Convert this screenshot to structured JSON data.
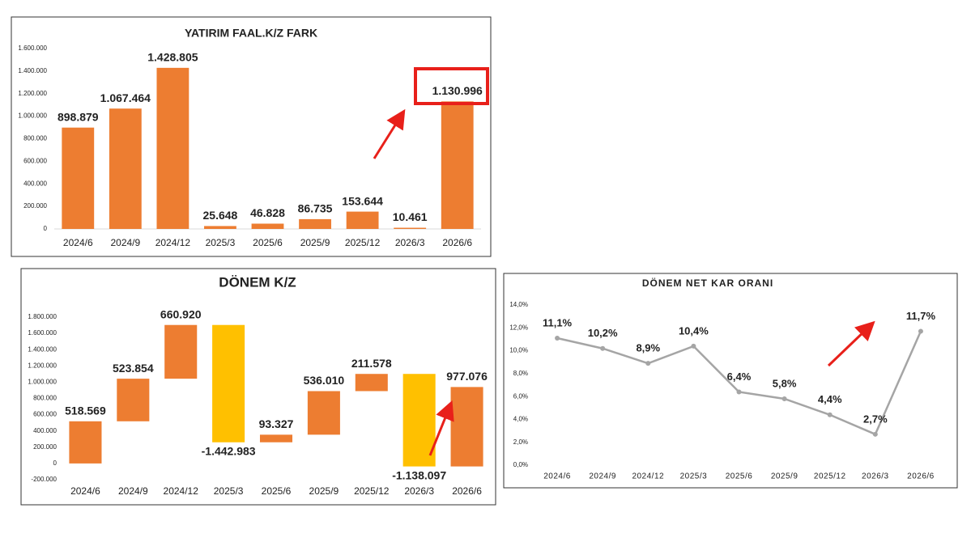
{
  "chart_data": [
    {
      "type": "bar",
      "title": "YATIRIM FAAL.K/Z FARK",
      "categories": [
        "2024/6",
        "2024/9",
        "2024/12",
        "2025/3",
        "2025/6",
        "2025/9",
        "2025/12",
        "2026/3",
        "2026/6"
      ],
      "values": [
        898879,
        1067464,
        1428805,
        25648,
        46828,
        86735,
        153644,
        10461,
        1130996
      ],
      "value_labels": [
        "898.879",
        "1.067.464",
        "1.428.805",
        "25.648",
        "46.828",
        "86.735",
        "153.644",
        "10.461",
        "1.130.996"
      ],
      "color": "#ed7d31",
      "ylim": [
        0,
        1600000
      ],
      "yticks": [
        0,
        {
          "value": 200000,
          "label": "200.000"
        },
        {
          "value": 400000,
          "label": "400.000"
        },
        {
          "value": 600000,
          "label": "600.000"
        },
        {
          "value": 800000,
          "label": "800.000"
        },
        {
          "value": 1000000,
          "label": "1.000.000"
        },
        {
          "value": 1200000,
          "label": "1.200.000"
        },
        {
          "value": 1400000,
          "label": "1.400.000"
        },
        {
          "value": 1600000,
          "label": "1.600.000"
        }
      ]
    },
    {
      "type": "waterfall",
      "title": "DÖNEM K/Z",
      "categories": [
        "2024/6",
        "2024/9",
        "2024/12",
        "2025/3",
        "2025/6",
        "2025/9",
        "2025/12",
        "2026/3",
        "2026/6"
      ],
      "values": [
        518569,
        523854,
        660920,
        -1442983,
        93327,
        536010,
        211578,
        -1138097,
        977076
      ],
      "value_labels": [
        "518.569",
        "523.854",
        "660.920",
        "-1.442.983",
        "93.327",
        "536.010",
        "211.578",
        "-1.138.097",
        "977.076"
      ],
      "increase_color": "#ed7d31",
      "decrease_color": "#ffc000",
      "ylim": [
        -200000,
        1800000
      ],
      "yticks": [
        {
          "value": -200000,
          "label": "-200.000"
        },
        0,
        {
          "value": 200000,
          "label": "200.000"
        },
        {
          "value": 400000,
          "label": "400.000"
        },
        {
          "value": 600000,
          "label": "600.000"
        },
        {
          "value": 800000,
          "label": "800.000"
        },
        {
          "value": 1000000,
          "label": "1.000.000"
        },
        {
          "value": 1200000,
          "label": "1.200.000"
        },
        {
          "value": 1400000,
          "label": "1.400.000"
        },
        {
          "value": 1600000,
          "label": "1.600.000"
        },
        {
          "value": 1800000,
          "label": "1.800.000"
        }
      ]
    },
    {
      "type": "line",
      "title": "DÖNEM NET KAR ORANI",
      "categories": [
        "2024/6",
        "2024/9",
        "2024/12",
        "2025/3",
        "2025/6",
        "2025/9",
        "2025/12",
        "2026/3",
        "2026/6"
      ],
      "values": [
        11.1,
        10.2,
        8.9,
        10.4,
        6.4,
        5.8,
        4.4,
        2.7,
        11.7
      ],
      "value_labels": [
        "11,1%",
        "10,2%",
        "8,9%",
        "10,4%",
        "6,4%",
        "5,8%",
        "4,4%",
        "2,7%",
        "11,7%"
      ],
      "color": "#a5a5a5",
      "ylim": [
        0,
        14
      ],
      "yticks": [
        {
          "value": 0,
          "label": "0,0%"
        },
        {
          "value": 2,
          "label": "2,0%"
        },
        {
          "value": 4,
          "label": "4,0%"
        },
        {
          "value": 6,
          "label": "6,0%"
        },
        {
          "value": 8,
          "label": "8,0%"
        },
        {
          "value": 10,
          "label": "10,0%"
        },
        {
          "value": 12,
          "label": "12,0%"
        },
        {
          "value": 14,
          "label": "14,0%"
        }
      ]
    }
  ]
}
